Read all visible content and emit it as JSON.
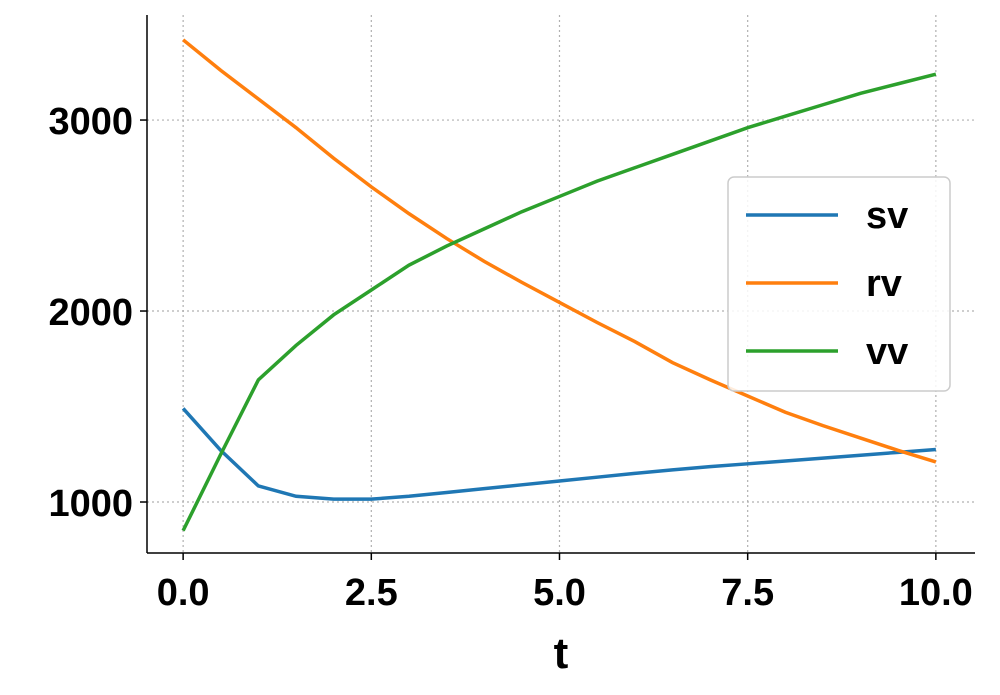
{
  "chart_data": {
    "type": "line",
    "xlabel": "t",
    "x": [
      0,
      0.5,
      1,
      1.5,
      2,
      2.5,
      3,
      3.5,
      4,
      4.5,
      5,
      5.5,
      6,
      6.5,
      7,
      7.5,
      8,
      8.5,
      9,
      9.5,
      10
    ],
    "series": [
      {
        "name": "sv",
        "color": "#1f77b4",
        "values": [
          1490,
          1270,
          1084,
          1030,
          1015,
          1015,
          1030,
          1050,
          1070,
          1090,
          1110,
          1130,
          1150,
          1168,
          1185,
          1200,
          1215,
          1230,
          1245,
          1260,
          1275
        ]
      },
      {
        "name": "rv",
        "color": "#ff7f0e",
        "values": [
          3420,
          3260,
          3110,
          2960,
          2800,
          2650,
          2510,
          2380,
          2260,
          2150,
          2045,
          1940,
          1840,
          1730,
          1640,
          1555,
          1470,
          1400,
          1335,
          1270,
          1210
        ]
      },
      {
        "name": "vv",
        "color": "#2ca02c",
        "values": [
          850,
          1250,
          1640,
          1820,
          1980,
          2110,
          2240,
          2340,
          2430,
          2520,
          2600,
          2680,
          2750,
          2820,
          2890,
          2960,
          3020,
          3080,
          3140,
          3190,
          3240
        ]
      }
    ],
    "xlim": [
      -0.48,
      10.52
    ],
    "ylim": [
      733,
      3550
    ],
    "xticks": [
      {
        "value": 0,
        "label": "0.0"
      },
      {
        "value": 2.5,
        "label": "2.5"
      },
      {
        "value": 5,
        "label": "5.0"
      },
      {
        "value": 7.5,
        "label": "7.5"
      },
      {
        "value": 10,
        "label": "10.0"
      }
    ],
    "yticks": [
      1000,
      2000,
      3000
    ],
    "grid": true,
    "legend": "center right"
  }
}
